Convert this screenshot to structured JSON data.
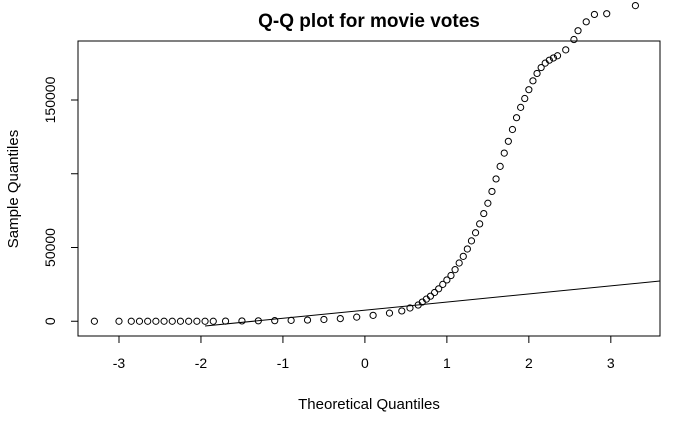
{
  "chart_data": {
    "type": "scatter",
    "title": "Q-Q plot for movie votes",
    "xlabel": "Theoretical Quantiles",
    "ylabel": "Sample Quantiles",
    "xlim": [
      -3.5,
      3.6
    ],
    "ylim": [
      -10000,
      190000
    ],
    "x_ticks": [
      -3,
      -2,
      -1,
      0,
      1,
      2,
      3
    ],
    "y_ticks": [
      0,
      50000,
      100000,
      150000
    ],
    "y_tick_labels": [
      "0",
      "50000",
      "",
      "150000"
    ],
    "x": [
      -3.3,
      -3.0,
      -2.85,
      -2.75,
      -2.65,
      -2.55,
      -2.45,
      -2.35,
      -2.25,
      -2.15,
      -2.05,
      -1.95,
      -1.85,
      -1.7,
      -1.5,
      -1.3,
      -1.1,
      -0.9,
      -0.7,
      -0.5,
      -0.3,
      -0.1,
      0.1,
      0.3,
      0.45,
      0.55,
      0.65,
      0.7,
      0.75,
      0.8,
      0.85,
      0.9,
      0.95,
      1.0,
      1.05,
      1.1,
      1.15,
      1.2,
      1.25,
      1.3,
      1.35,
      1.4,
      1.45,
      1.5,
      1.55,
      1.6,
      1.65,
      1.7,
      1.75,
      1.8,
      1.85,
      1.9,
      1.95,
      2.0,
      2.05,
      2.1,
      2.15,
      2.2,
      2.25,
      2.3,
      2.35,
      2.45,
      2.55,
      2.6,
      2.7,
      2.8,
      2.95,
      3.3
    ],
    "y": [
      0,
      0,
      0,
      0,
      0,
      0,
      0,
      0,
      0,
      0,
      0,
      0,
      0,
      100,
      200,
      300,
      400,
      600,
      800,
      1200,
      1800,
      2800,
      4000,
      5500,
      7000,
      9000,
      11000,
      13000,
      15000,
      17000,
      19500,
      22000,
      25000,
      28000,
      31000,
      35000,
      39500,
      44000,
      49000,
      54500,
      60000,
      66000,
      73000,
      80000,
      88000,
      96500,
      105000,
      114000,
      122000,
      130000,
      138000,
      145000,
      151000,
      157000,
      163000,
      168000,
      172000,
      175000,
      177000,
      178500,
      180000,
      184000,
      191000,
      197000,
      203000,
      208000,
      208500,
      214000
    ],
    "reference_line": {
      "slope": 5500,
      "intercept": 7500
    },
    "grid": false
  }
}
